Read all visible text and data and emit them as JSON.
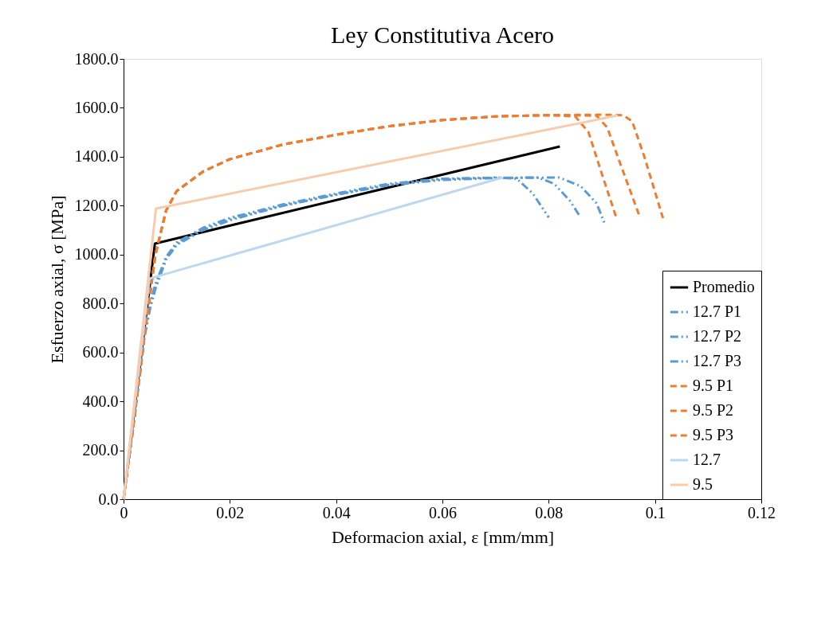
{
  "chart_data": {
    "type": "line",
    "title": "Ley Constitutiva Acero",
    "xlabel": "Deformacion axial, ε [mm/mm]",
    "ylabel": "Esfuerzo axial, σ [MPa]",
    "xlim": [
      0,
      0.12
    ],
    "xticks": [
      0,
      0.02,
      0.04,
      0.06,
      0.08,
      0.1,
      0.12
    ],
    "ylim": [
      0,
      1800
    ],
    "yticks": [
      {
        "value": 0,
        "label": "0.0"
      },
      {
        "value": 200,
        "label": "200.0"
      },
      {
        "value": 400,
        "label": "400.0"
      },
      {
        "value": 600,
        "label": "600.0"
      },
      {
        "value": 800,
        "label": "800.0"
      },
      {
        "value": 1000,
        "label": "1000.0"
      },
      {
        "value": 1200,
        "label": "1200.0"
      },
      {
        "value": 1400,
        "label": "1400.0"
      },
      {
        "value": 1600,
        "label": "1600.0"
      },
      {
        "value": 1800,
        "label": "1800.0"
      }
    ],
    "grid": false,
    "legend": "bottom right",
    "marker": "none",
    "series": [
      {
        "name": "Promedio",
        "color": "#000000",
        "line_style": "solid",
        "x": [
          0,
          0.0059,
          0.0821
        ],
        "values": [
          0,
          1045,
          1442
        ]
      },
      {
        "name": "12.7 P1",
        "color": "#5b9bd5",
        "line_style": "dashdot",
        "x": [
          0,
          0.002,
          0.004,
          0.005,
          0.006,
          0.008,
          0.01,
          0.015,
          0.02,
          0.03,
          0.04,
          0.05,
          0.06,
          0.07,
          0.074,
          0.077,
          0.08
        ],
        "values": [
          0,
          330,
          690,
          800,
          880,
          990,
          1050,
          1110,
          1150,
          1205,
          1250,
          1290,
          1310,
          1315,
          1310,
          1250,
          1152
        ]
      },
      {
        "name": "12.7 P2",
        "color": "#5b9bd5",
        "line_style": "dashdot",
        "x": [
          0,
          0.002,
          0.004,
          0.005,
          0.006,
          0.008,
          0.01,
          0.015,
          0.02,
          0.03,
          0.04,
          0.05,
          0.06,
          0.07,
          0.078,
          0.081,
          0.084,
          0.086
        ],
        "values": [
          0,
          330,
          680,
          790,
          870,
          985,
          1045,
          1105,
          1145,
          1200,
          1245,
          1285,
          1308,
          1314,
          1315,
          1290,
          1220,
          1152
        ]
      },
      {
        "name": "12.7 P3",
        "color": "#5b9bd5",
        "line_style": "dashdot",
        "x": [
          0,
          0.002,
          0.004,
          0.005,
          0.006,
          0.008,
          0.01,
          0.015,
          0.02,
          0.03,
          0.04,
          0.05,
          0.06,
          0.07,
          0.082,
          0.086,
          0.089,
          0.0906
        ],
        "values": [
          0,
          320,
          670,
          780,
          860,
          980,
          1040,
          1100,
          1140,
          1200,
          1245,
          1285,
          1305,
          1313,
          1315,
          1280,
          1210,
          1123
        ]
      },
      {
        "name": "9.5 P1",
        "color": "#ed7d31",
        "line_style": "dashed",
        "x": [
          0,
          0.002,
          0.004,
          0.006,
          0.008,
          0.01,
          0.015,
          0.02,
          0.03,
          0.04,
          0.05,
          0.06,
          0.07,
          0.08,
          0.085,
          0.0875,
          0.09,
          0.0928
        ],
        "values": [
          0,
          330,
          680,
          1000,
          1180,
          1260,
          1340,
          1390,
          1450,
          1490,
          1525,
          1550,
          1565,
          1570,
          1565,
          1500,
          1330,
          1146
        ]
      },
      {
        "name": "9.5 P2",
        "color": "#ed7d31",
        "line_style": "dashed",
        "x": [
          0,
          0.002,
          0.004,
          0.006,
          0.008,
          0.01,
          0.015,
          0.02,
          0.03,
          0.04,
          0.05,
          0.06,
          0.07,
          0.08,
          0.089,
          0.091,
          0.094,
          0.097
        ],
        "values": [
          0,
          330,
          680,
          1000,
          1180,
          1260,
          1340,
          1390,
          1450,
          1490,
          1525,
          1550,
          1565,
          1570,
          1568,
          1520,
          1340,
          1162
        ]
      },
      {
        "name": "9.5 P3",
        "color": "#ed7d31",
        "line_style": "dashed",
        "x": [
          0,
          0.002,
          0.004,
          0.006,
          0.008,
          0.01,
          0.015,
          0.02,
          0.03,
          0.04,
          0.05,
          0.06,
          0.07,
          0.08,
          0.09,
          0.094,
          0.0957,
          0.098,
          0.1015
        ],
        "values": [
          0,
          330,
          680,
          1000,
          1180,
          1260,
          1340,
          1390,
          1450,
          1490,
          1525,
          1550,
          1565,
          1570,
          1572,
          1570,
          1545,
          1400,
          1149
        ]
      },
      {
        "name": "12.7",
        "color": "#bdd7ee",
        "line_style": "solid",
        "x": [
          0,
          0.0049,
          0.0713
        ],
        "values": [
          0,
          902,
          1315
        ]
      },
      {
        "name": "9.5",
        "color": "#f8cbad",
        "line_style": "solid",
        "x": [
          0,
          0.0061,
          0.093
        ],
        "values": [
          0,
          1188,
          1569
        ]
      }
    ]
  }
}
